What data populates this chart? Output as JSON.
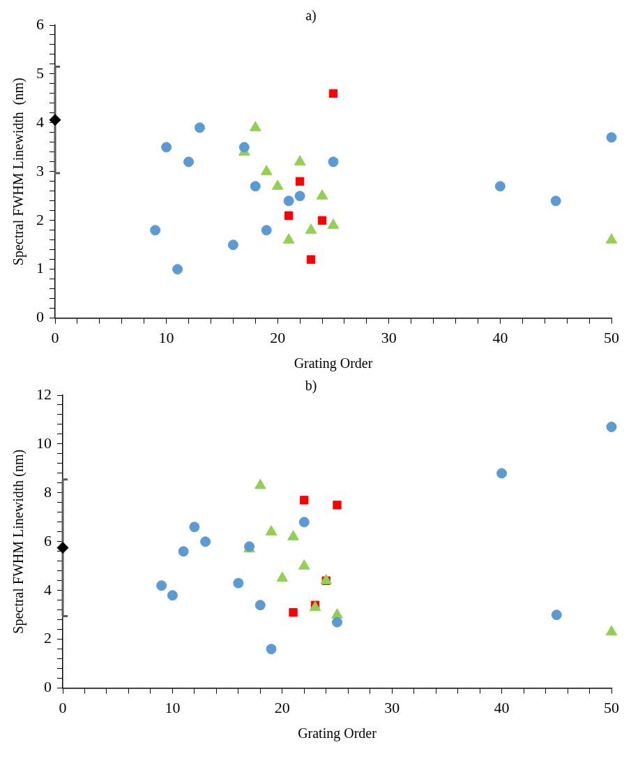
{
  "chart_data": [
    {
      "type": "scatter",
      "title": "a)",
      "xlabel": "Grating Order",
      "ylabel": "Spectral FWHM Linewidth  (nm)",
      "xlim": [
        0,
        50
      ],
      "ylim": [
        0,
        6
      ],
      "xticks": [
        0,
        {
          "value": 2,
          "label": null
        },
        {
          "value": 4,
          "label": null
        },
        {
          "value": 6,
          "label": null
        },
        {
          "value": 8,
          "label": null
        },
        10,
        {
          "value": 12,
          "label": null
        },
        {
          "value": 14,
          "label": null
        },
        {
          "value": 16,
          "label": null
        },
        {
          "value": 18,
          "label": null
        },
        20,
        {
          "value": 22,
          "label": null
        },
        {
          "value": 24,
          "label": null
        },
        {
          "value": 26,
          "label": null
        },
        {
          "value": 28,
          "label": null
        },
        30,
        {
          "value": 32,
          "label": null
        },
        {
          "value": 34,
          "label": null
        },
        {
          "value": 36,
          "label": null
        },
        {
          "value": 38,
          "label": null
        },
        40,
        {
          "value": 42,
          "label": null
        },
        {
          "value": 44,
          "label": null
        },
        {
          "value": 46,
          "label": null
        },
        {
          "value": 48,
          "label": null
        },
        50
      ],
      "yticks": [
        0,
        {
          "value": 0.2,
          "label": null
        },
        {
          "value": 0.4,
          "label": null
        },
        {
          "value": 0.6,
          "label": null
        },
        {
          "value": 0.8,
          "label": null
        },
        1,
        {
          "value": 1.2,
          "label": null
        },
        {
          "value": 1.4,
          "label": null
        },
        {
          "value": 1.6,
          "label": null
        },
        {
          "value": 1.8,
          "label": null
        },
        2,
        {
          "value": 2.2,
          "label": null
        },
        {
          "value": 2.4,
          "label": null
        },
        {
          "value": 2.6,
          "label": null
        },
        {
          "value": 2.8,
          "label": null
        },
        3,
        {
          "value": 3.2,
          "label": null
        },
        {
          "value": 3.4,
          "label": null
        },
        {
          "value": 3.6,
          "label": null
        },
        {
          "value": 3.8,
          "label": null
        },
        4,
        {
          "value": 4.2,
          "label": null
        },
        {
          "value": 4.4,
          "label": null
        },
        {
          "value": 4.6,
          "label": null
        },
        {
          "value": 4.8,
          "label": null
        },
        5,
        {
          "value": 5.2,
          "label": null
        },
        {
          "value": 5.4,
          "label": null
        },
        {
          "value": 5.6,
          "label": null
        },
        {
          "value": 5.8,
          "label": null
        },
        6
      ],
      "grid": false,
      "legend": false,
      "series": [
        {
          "color": "#5b9bd5",
          "marker": "circle",
          "x": [
            9,
            10,
            11,
            12,
            13,
            16,
            17,
            18,
            19,
            21,
            22,
            25,
            40,
            45,
            50
          ],
          "values": [
            1.8,
            3.5,
            1.0,
            3.2,
            3.9,
            1.5,
            3.5,
            2.7,
            1.8,
            2.4,
            2.5,
            3.2,
            2.7,
            2.4,
            3.7
          ]
        },
        {
          "color": "#92d050",
          "marker": "triangle",
          "x": [
            17,
            18,
            19,
            20,
            21,
            22,
            23,
            24,
            25,
            50
          ],
          "values": [
            3.4,
            3.9,
            3.0,
            2.7,
            1.6,
            3.2,
            1.8,
            2.5,
            1.9,
            1.6
          ]
        },
        {
          "color": "#ff0000",
          "marker": "square",
          "x": [
            21,
            22,
            23,
            24,
            25
          ],
          "values": [
            2.1,
            2.8,
            1.2,
            2.0,
            4.6
          ]
        },
        {
          "color": "#000000",
          "marker": "diamond",
          "x": [
            0
          ],
          "values": [
            4.06
          ],
          "errors": [
            1.09
          ]
        }
      ]
    },
    {
      "type": "scatter",
      "title": "b)",
      "xlabel": "Grating Order",
      "ylabel": "Spectral FWHM Linewidth (nm)",
      "xlim": [
        0,
        50
      ],
      "ylim": [
        0,
        12
      ],
      "xticks": [
        0,
        {
          "value": 2,
          "label": null
        },
        {
          "value": 4,
          "label": null
        },
        {
          "value": 6,
          "label": null
        },
        {
          "value": 8,
          "label": null
        },
        10,
        {
          "value": 12,
          "label": null
        },
        {
          "value": 14,
          "label": null
        },
        {
          "value": 16,
          "label": null
        },
        {
          "value": 18,
          "label": null
        },
        20,
        {
          "value": 22,
          "label": null
        },
        {
          "value": 24,
          "label": null
        },
        {
          "value": 26,
          "label": null
        },
        {
          "value": 28,
          "label": null
        },
        30,
        {
          "value": 32,
          "label": null
        },
        {
          "value": 34,
          "label": null
        },
        {
          "value": 36,
          "label": null
        },
        {
          "value": 38,
          "label": null
        },
        40,
        {
          "value": 42,
          "label": null
        },
        {
          "value": 44,
          "label": null
        },
        {
          "value": 46,
          "label": null
        },
        {
          "value": 48,
          "label": null
        },
        50
      ],
      "yticks": [
        0,
        {
          "value": 0.4,
          "label": null
        },
        {
          "value": 0.8,
          "label": null
        },
        {
          "value": 1.2,
          "label": null
        },
        {
          "value": 1.6,
          "label": null
        },
        2,
        {
          "value": 2.4,
          "label": null
        },
        {
          "value": 2.8,
          "label": null
        },
        {
          "value": 3.2,
          "label": null
        },
        {
          "value": 3.6,
          "label": null
        },
        4,
        {
          "value": 4.4,
          "label": null
        },
        {
          "value": 4.8,
          "label": null
        },
        {
          "value": 5.2,
          "label": null
        },
        {
          "value": 5.6,
          "label": null
        },
        6,
        {
          "value": 6.4,
          "label": null
        },
        {
          "value": 6.8,
          "label": null
        },
        {
          "value": 7.2,
          "label": null
        },
        {
          "value": 7.6,
          "label": null
        },
        8,
        {
          "value": 8.4,
          "label": null
        },
        {
          "value": 8.8,
          "label": null
        },
        {
          "value": 9.2,
          "label": null
        },
        {
          "value": 9.6,
          "label": null
        },
        10,
        {
          "value": 10.4,
          "label": null
        },
        {
          "value": 10.8,
          "label": null
        },
        {
          "value": 11.2,
          "label": null
        },
        {
          "value": 11.6,
          "label": null
        },
        12
      ],
      "grid": false,
      "legend": false,
      "series": [
        {
          "color": "#5b9bd5",
          "marker": "circle",
          "x": [
            9,
            10,
            11,
            12,
            13,
            16,
            17,
            18,
            19,
            22,
            25,
            40,
            45,
            50
          ],
          "values": [
            4.2,
            3.8,
            5.6,
            6.6,
            6.0,
            4.3,
            5.8,
            3.4,
            1.6,
            6.8,
            2.7,
            8.8,
            3.0,
            10.7
          ]
        },
        {
          "color": "#92d050",
          "marker": "triangle",
          "x": [
            17,
            18,
            19,
            20,
            21,
            22,
            23,
            24,
            25,
            50
          ],
          "values": [
            5.7,
            8.3,
            6.4,
            4.5,
            6.2,
            5.0,
            3.3,
            4.4,
            3.0,
            2.3
          ]
        },
        {
          "color": "#ff0000",
          "marker": "square",
          "x": [
            21,
            22,
            23,
            24,
            25
          ],
          "values": [
            3.1,
            7.7,
            3.4,
            4.4,
            7.5
          ]
        },
        {
          "color": "#000000",
          "marker": "diamond",
          "x": [
            0
          ],
          "values": [
            5.75
          ],
          "errors": [
            2.8
          ]
        }
      ]
    }
  ]
}
